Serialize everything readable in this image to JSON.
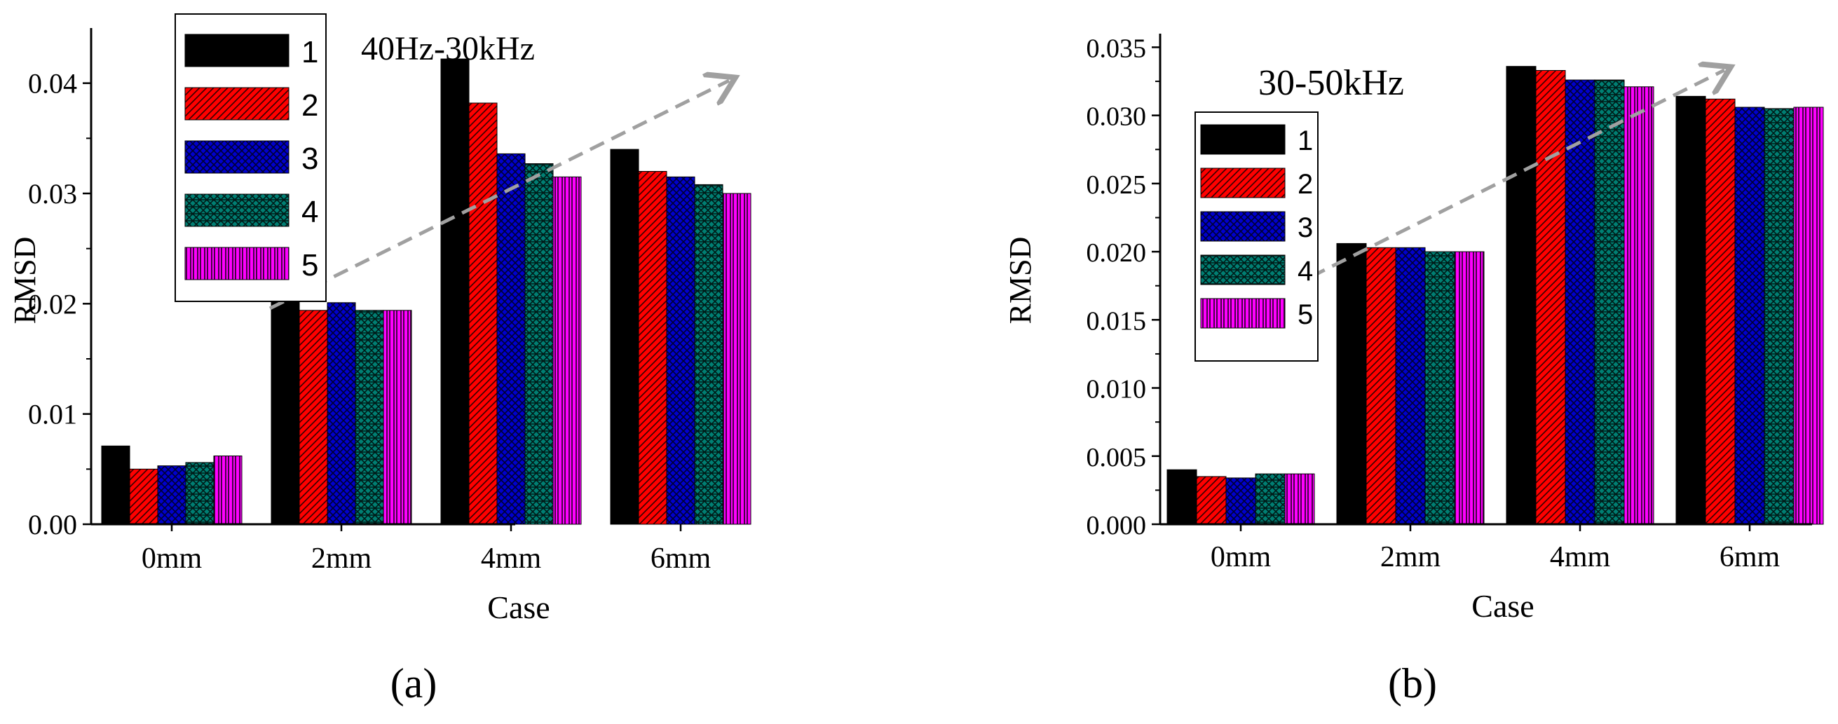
{
  "colors": {
    "series": [
      "#000000",
      "#ff0000",
      "#0000cc",
      "#007f73",
      "#ff00ff"
    ],
    "hatch": [
      "#000000",
      "#330000",
      "#000033",
      "#001a17",
      "#330033"
    ],
    "arrow": "#a0a0a0"
  },
  "chart_data": [
    {
      "type": "bar",
      "panel_label": "(a)",
      "annotation": "40Hz-30kHz",
      "xlabel": "Case",
      "ylabel": "RMSD",
      "categories": [
        "0mm",
        "2mm",
        "4mm",
        "6mm"
      ],
      "ylim": [
        0,
        0.045
      ],
      "yticks": [
        "0.00",
        "0.01",
        "0.02",
        "0.03",
        "0.04"
      ],
      "legend_position": "top-left",
      "series": [
        {
          "name": "1",
          "values": [
            0.0071,
            0.021,
            0.0422,
            0.034
          ]
        },
        {
          "name": "2",
          "values": [
            0.005,
            0.0194,
            0.0382,
            0.032
          ]
        },
        {
          "name": "3",
          "values": [
            0.0053,
            0.0201,
            0.0336,
            0.0315
          ]
        },
        {
          "name": "4",
          "values": [
            0.0056,
            0.0194,
            0.0327,
            0.0308
          ]
        },
        {
          "name": "5",
          "values": [
            0.0062,
            0.0194,
            0.0315,
            0.03
          ]
        }
      ]
    },
    {
      "type": "bar",
      "panel_label": "(b)",
      "annotation": "30-50kHz",
      "xlabel": "Case",
      "ylabel": "RMSD",
      "categories": [
        "0mm",
        "2mm",
        "4mm",
        "6mm"
      ],
      "ylim": [
        0,
        0.036
      ],
      "yticks": [
        "0.000",
        "0.005",
        "0.010",
        "0.015",
        "0.020",
        "0.025",
        "0.030",
        "0.035"
      ],
      "legend_position": "top-left",
      "series": [
        {
          "name": "1",
          "values": [
            0.004,
            0.0206,
            0.0336,
            0.0314
          ]
        },
        {
          "name": "2",
          "values": [
            0.0035,
            0.0203,
            0.0333,
            0.0312
          ]
        },
        {
          "name": "3",
          "values": [
            0.0034,
            0.0203,
            0.0326,
            0.0306
          ]
        },
        {
          "name": "4",
          "values": [
            0.0037,
            0.02,
            0.0326,
            0.0305
          ]
        },
        {
          "name": "5",
          "values": [
            0.0037,
            0.02,
            0.0321,
            0.0306
          ]
        }
      ]
    }
  ]
}
